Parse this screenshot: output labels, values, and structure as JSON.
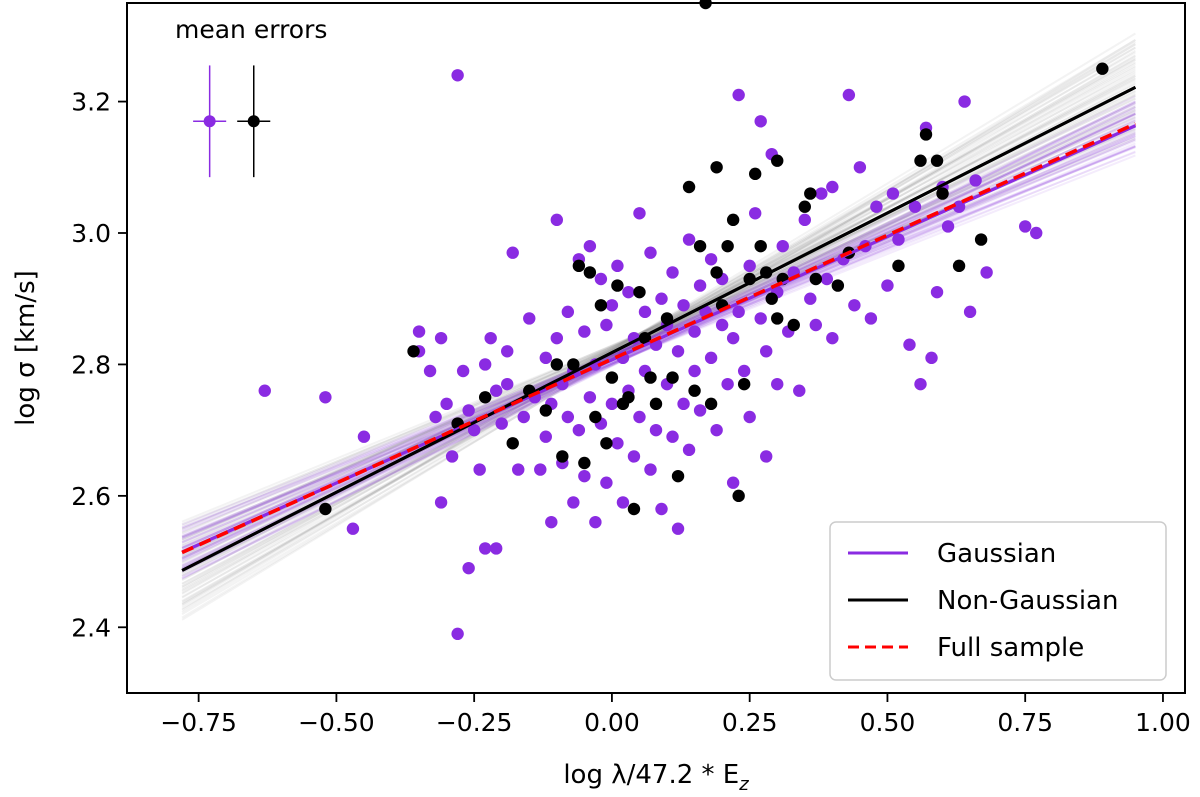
{
  "chart_data": {
    "type": "scatter",
    "xlabel": "log λ/47.2 * E",
    "xlabel_sub": "z",
    "ylabel": "log σ [km/s]",
    "xlim": [
      -0.88,
      1.04
    ],
    "ylim": [
      2.3,
      3.35
    ],
    "xticks": [
      -0.75,
      -0.5,
      -0.25,
      0.0,
      0.25,
      0.5,
      0.75,
      1.0
    ],
    "xtick_labels": [
      "−0.75",
      "−0.50",
      "−0.25",
      "0.00",
      "0.25",
      "0.50",
      "0.75",
      "1.00"
    ],
    "yticks": [
      2.4,
      2.6,
      2.8,
      3.0,
      3.2
    ],
    "ytick_labels": [
      "2.4",
      "2.6",
      "2.8",
      "3.0",
      "3.2"
    ],
    "grid": false,
    "legend_position": "lower-right",
    "colors": {
      "gaussian": "#8a2be2",
      "nongaussian": "#000000",
      "full": "#ff0000"
    },
    "annotation": "mean errors",
    "mean_errors": [
      {
        "series": "Gaussian",
        "x": -0.73,
        "y": 3.17,
        "xerr": 0.03,
        "yerr": 0.085,
        "color": "#8a2be2"
      },
      {
        "series": "Non-Gaussian",
        "x": -0.65,
        "y": 3.17,
        "xerr": 0.03,
        "yerr": 0.085,
        "color": "#000000"
      }
    ],
    "series": [
      {
        "name": "Gaussian",
        "color": "#8a2be2",
        "fit": {
          "slope": 0.375,
          "intercept": 2.807,
          "x0": -0.78,
          "x1": 0.95,
          "style": "solid"
        },
        "points": [
          [
            -0.63,
            2.76
          ],
          [
            -0.52,
            2.75
          ],
          [
            -0.47,
            2.55
          ],
          [
            -0.45,
            2.69
          ],
          [
            -0.35,
            2.85
          ],
          [
            -0.35,
            2.82
          ],
          [
            -0.33,
            2.79
          ],
          [
            -0.32,
            2.72
          ],
          [
            -0.31,
            2.84
          ],
          [
            -0.31,
            2.59
          ],
          [
            -0.3,
            2.74
          ],
          [
            -0.29,
            2.66
          ],
          [
            -0.28,
            3.24
          ],
          [
            -0.28,
            2.39
          ],
          [
            -0.27,
            2.79
          ],
          [
            -0.26,
            2.49
          ],
          [
            -0.26,
            2.73
          ],
          [
            -0.25,
            2.7
          ],
          [
            -0.24,
            2.64
          ],
          [
            -0.23,
            2.8
          ],
          [
            -0.23,
            2.52
          ],
          [
            -0.22,
            2.84
          ],
          [
            -0.21,
            2.76
          ],
          [
            -0.21,
            2.52
          ],
          [
            -0.2,
            2.71
          ],
          [
            -0.19,
            2.77
          ],
          [
            -0.19,
            2.82
          ],
          [
            -0.18,
            2.97
          ],
          [
            -0.17,
            2.64
          ],
          [
            -0.16,
            2.72
          ],
          [
            -0.15,
            2.87
          ],
          [
            -0.14,
            2.75
          ],
          [
            -0.13,
            2.64
          ],
          [
            -0.12,
            2.81
          ],
          [
            -0.12,
            2.69
          ],
          [
            -0.11,
            2.56
          ],
          [
            -0.11,
            2.74
          ],
          [
            -0.1,
            2.84
          ],
          [
            -0.1,
            3.02
          ],
          [
            -0.09,
            2.77
          ],
          [
            -0.09,
            2.65
          ],
          [
            -0.08,
            2.88
          ],
          [
            -0.08,
            2.72
          ],
          [
            -0.07,
            2.79
          ],
          [
            -0.07,
            2.59
          ],
          [
            -0.06,
            2.96
          ],
          [
            -0.06,
            2.7
          ],
          [
            -0.05,
            2.85
          ],
          [
            -0.05,
            2.63
          ],
          [
            -0.04,
            2.98
          ],
          [
            -0.04,
            2.75
          ],
          [
            -0.03,
            2.8
          ],
          [
            -0.03,
            2.56
          ],
          [
            -0.02,
            2.93
          ],
          [
            -0.02,
            2.71
          ],
          [
            -0.01,
            2.86
          ],
          [
            -0.01,
            2.62
          ],
          [
            0.0,
            2.74
          ],
          [
            0.0,
            2.89
          ],
          [
            0.01,
            2.95
          ],
          [
            0.01,
            2.68
          ],
          [
            0.02,
            2.81
          ],
          [
            0.02,
            2.59
          ],
          [
            0.03,
            2.91
          ],
          [
            0.03,
            2.76
          ],
          [
            0.04,
            2.84
          ],
          [
            0.04,
            2.66
          ],
          [
            0.05,
            3.03
          ],
          [
            0.05,
            2.72
          ],
          [
            0.06,
            2.88
          ],
          [
            0.06,
            2.79
          ],
          [
            0.07,
            2.64
          ],
          [
            0.07,
            2.97
          ],
          [
            0.08,
            2.83
          ],
          [
            0.08,
            2.7
          ],
          [
            0.09,
            2.9
          ],
          [
            0.09,
            2.58
          ],
          [
            0.1,
            2.77
          ],
          [
            0.1,
            2.86
          ],
          [
            0.11,
            2.94
          ],
          [
            0.11,
            2.69
          ],
          [
            0.12,
            2.55
          ],
          [
            0.12,
            2.82
          ],
          [
            0.13,
            2.89
          ],
          [
            0.13,
            2.74
          ],
          [
            0.14,
            2.99
          ],
          [
            0.14,
            2.67
          ],
          [
            0.15,
            2.85
          ],
          [
            0.15,
            2.79
          ],
          [
            0.16,
            2.92
          ],
          [
            0.16,
            2.73
          ],
          [
            0.17,
            2.88
          ],
          [
            0.18,
            2.81
          ],
          [
            0.18,
            2.96
          ],
          [
            0.19,
            2.7
          ],
          [
            0.2,
            2.86
          ],
          [
            0.2,
            2.93
          ],
          [
            0.21,
            2.77
          ],
          [
            0.22,
            2.84
          ],
          [
            0.22,
            2.62
          ],
          [
            0.23,
            3.21
          ],
          [
            0.23,
            2.88
          ],
          [
            0.24,
            2.79
          ],
          [
            0.25,
            2.95
          ],
          [
            0.25,
            2.72
          ],
          [
            0.26,
            3.03
          ],
          [
            0.27,
            2.87
          ],
          [
            0.27,
            3.17
          ],
          [
            0.28,
            2.82
          ],
          [
            0.28,
            2.66
          ],
          [
            0.29,
            3.12
          ],
          [
            0.3,
            2.91
          ],
          [
            0.3,
            2.77
          ],
          [
            0.31,
            2.98
          ],
          [
            0.32,
            2.85
          ],
          [
            0.33,
            2.94
          ],
          [
            0.34,
            2.76
          ],
          [
            0.35,
            3.02
          ],
          [
            0.36,
            2.9
          ],
          [
            0.37,
            2.86
          ],
          [
            0.38,
            3.06
          ],
          [
            0.39,
            2.93
          ],
          [
            0.4,
            2.84
          ],
          [
            0.4,
            3.07
          ],
          [
            0.42,
            2.96
          ],
          [
            0.43,
            3.21
          ],
          [
            0.44,
            2.89
          ],
          [
            0.45,
            3.1
          ],
          [
            0.46,
            2.98
          ],
          [
            0.47,
            2.87
          ],
          [
            0.48,
            3.04
          ],
          [
            0.5,
            2.92
          ],
          [
            0.51,
            3.06
          ],
          [
            0.52,
            2.99
          ],
          [
            0.54,
            2.83
          ],
          [
            0.55,
            3.04
          ],
          [
            0.56,
            2.77
          ],
          [
            0.57,
            3.16
          ],
          [
            0.58,
            2.81
          ],
          [
            0.59,
            2.91
          ],
          [
            0.6,
            3.07
          ],
          [
            0.61,
            3.01
          ],
          [
            0.63,
            3.04
          ],
          [
            0.64,
            3.2
          ],
          [
            0.65,
            2.88
          ],
          [
            0.66,
            3.08
          ],
          [
            0.68,
            2.94
          ],
          [
            0.75,
            3.01
          ],
          [
            0.77,
            3.0
          ]
        ]
      },
      {
        "name": "Non-Gaussian",
        "color": "#000000",
        "fit": {
          "slope": 0.425,
          "intercept": 2.818,
          "x0": -0.78,
          "x1": 0.95,
          "style": "solid"
        },
        "points": [
          [
            -0.52,
            2.58
          ],
          [
            -0.36,
            2.82
          ],
          [
            -0.28,
            2.71
          ],
          [
            -0.23,
            2.75
          ],
          [
            -0.18,
            2.68
          ],
          [
            -0.15,
            2.76
          ],
          [
            -0.12,
            2.73
          ],
          [
            -0.1,
            2.8
          ],
          [
            -0.09,
            2.66
          ],
          [
            -0.07,
            2.8
          ],
          [
            -0.06,
            2.95
          ],
          [
            -0.05,
            2.65
          ],
          [
            -0.04,
            2.94
          ],
          [
            -0.03,
            2.72
          ],
          [
            -0.02,
            2.89
          ],
          [
            -0.01,
            2.68
          ],
          [
            0.0,
            2.78
          ],
          [
            0.01,
            2.92
          ],
          [
            0.02,
            2.74
          ],
          [
            0.03,
            2.75
          ],
          [
            0.04,
            2.58
          ],
          [
            0.05,
            2.91
          ],
          [
            0.06,
            2.84
          ],
          [
            0.07,
            2.78
          ],
          [
            0.08,
            2.74
          ],
          [
            0.1,
            2.87
          ],
          [
            0.11,
            2.78
          ],
          [
            0.12,
            2.63
          ],
          [
            0.14,
            3.07
          ],
          [
            0.15,
            2.76
          ],
          [
            0.16,
            2.98
          ],
          [
            0.17,
            3.35
          ],
          [
            0.18,
            2.74
          ],
          [
            0.19,
            2.94
          ],
          [
            0.19,
            3.1
          ],
          [
            0.2,
            2.89
          ],
          [
            0.21,
            2.98
          ],
          [
            0.22,
            3.02
          ],
          [
            0.23,
            2.6
          ],
          [
            0.24,
            2.77
          ],
          [
            0.25,
            2.93
          ],
          [
            0.26,
            3.09
          ],
          [
            0.27,
            2.98
          ],
          [
            0.28,
            2.94
          ],
          [
            0.29,
            2.9
          ],
          [
            0.3,
            2.87
          ],
          [
            0.3,
            3.11
          ],
          [
            0.31,
            2.93
          ],
          [
            0.33,
            2.86
          ],
          [
            0.35,
            3.04
          ],
          [
            0.36,
            3.06
          ],
          [
            0.37,
            2.93
          ],
          [
            0.41,
            2.92
          ],
          [
            0.43,
            2.97
          ],
          [
            0.52,
            2.95
          ],
          [
            0.56,
            3.11
          ],
          [
            0.57,
            3.15
          ],
          [
            0.59,
            3.11
          ],
          [
            0.6,
            3.06
          ],
          [
            0.63,
            2.95
          ],
          [
            0.67,
            2.99
          ],
          [
            0.89,
            3.25
          ]
        ]
      },
      {
        "name": "Full sample",
        "color": "#ff0000",
        "fit": {
          "slope": 0.377,
          "intercept": 2.808,
          "x0": -0.78,
          "x1": 0.95,
          "style": "dashed"
        },
        "points": []
      }
    ],
    "legend": [
      {
        "label": "Gaussian",
        "color": "#8a2be2",
        "style": "solid"
      },
      {
        "label": "Non-Gaussian",
        "color": "#000000",
        "style": "solid"
      },
      {
        "label": "Full sample",
        "color": "#ff0000",
        "style": "dashed"
      }
    ]
  }
}
